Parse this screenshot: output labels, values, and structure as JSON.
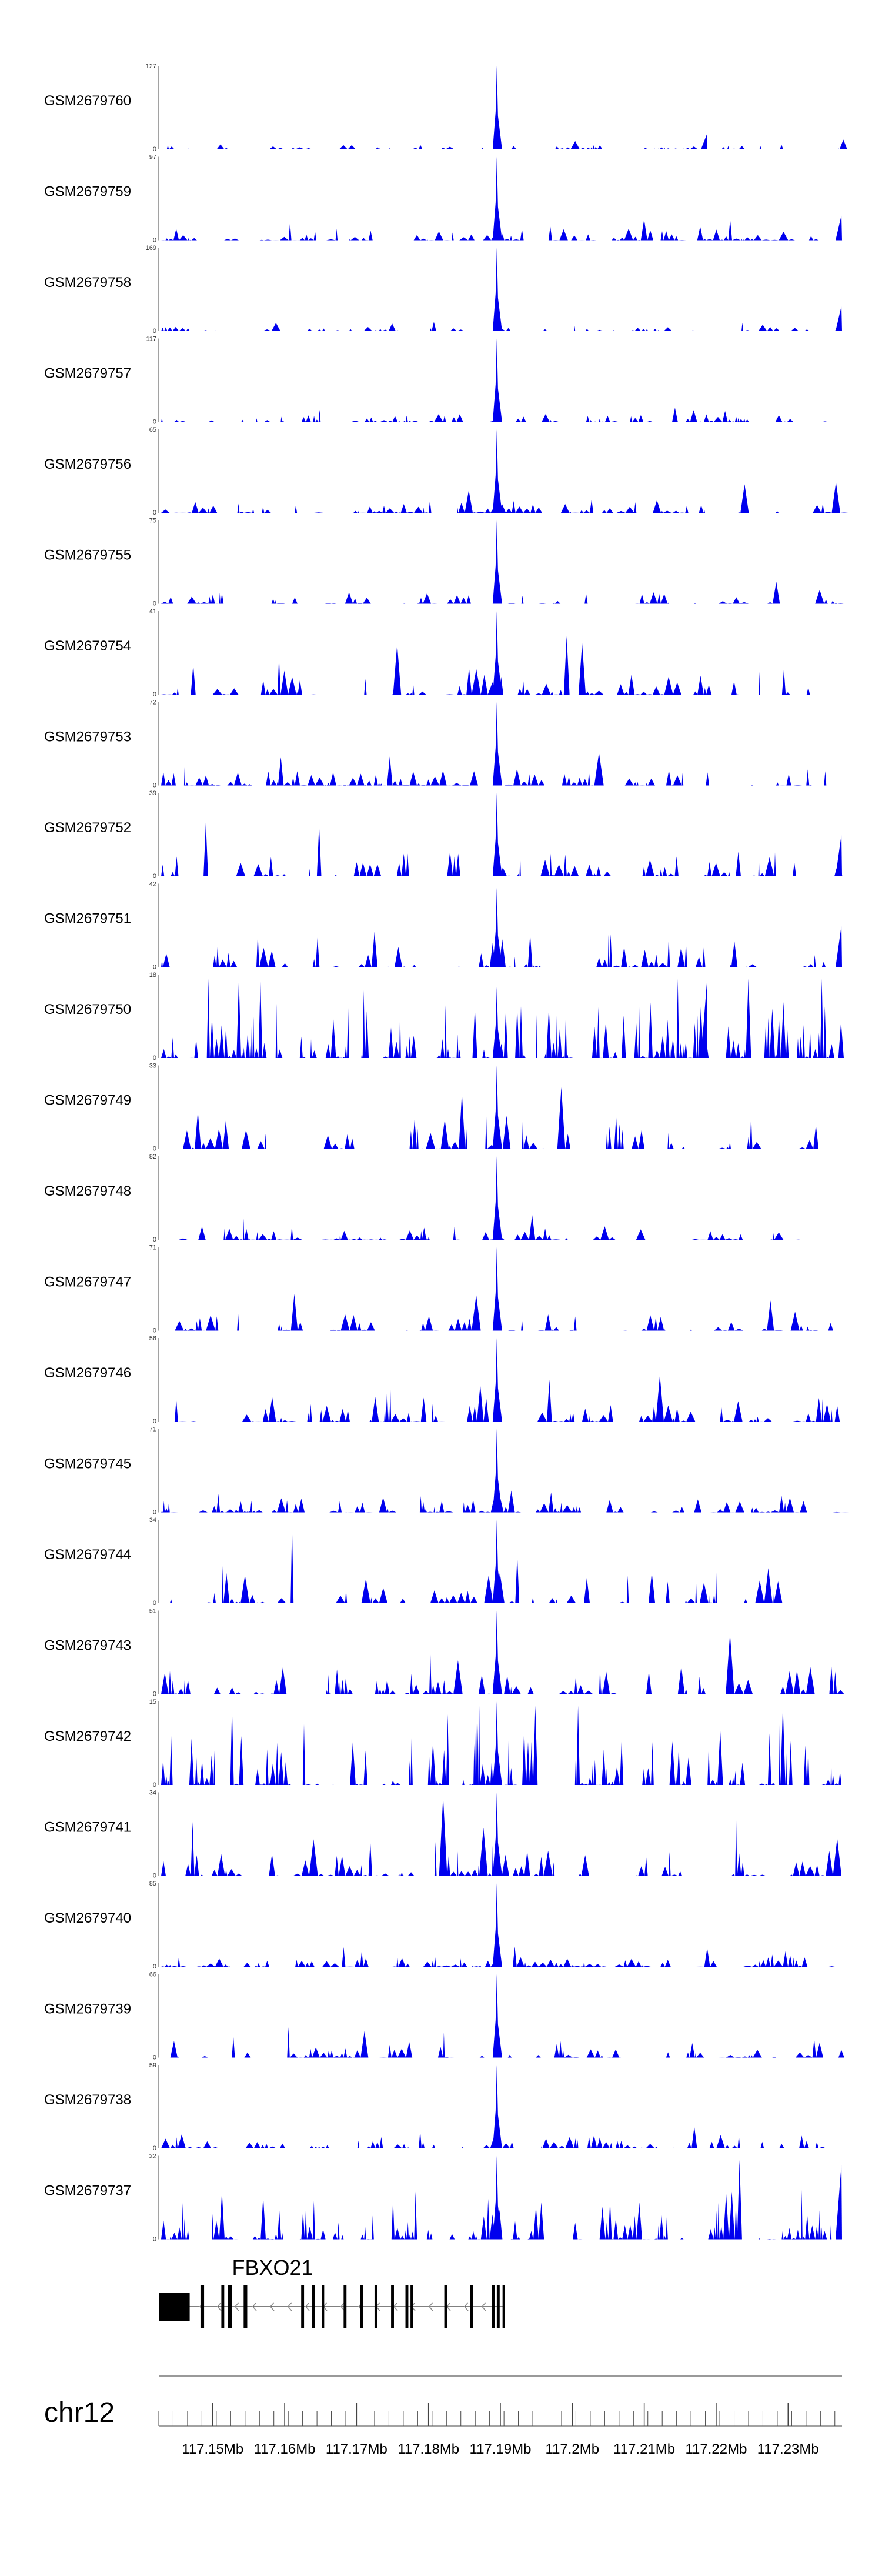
{
  "chart_data": {
    "type": "area",
    "title": "",
    "chromosome": "chr12",
    "genes": [
      {
        "name": "FBXO21",
        "strand": "-",
        "start": 117.1425,
        "end": 117.1905,
        "exons": [
          [
            117.1425,
            117.1468
          ],
          [
            117.1483,
            117.1487
          ],
          [
            117.1485,
            117.1488
          ],
          [
            117.1512,
            117.1516
          ],
          [
            117.1521,
            117.1527
          ],
          [
            117.1543,
            117.1548
          ],
          [
            117.1623,
            117.1627
          ],
          [
            117.1638,
            117.1642
          ],
          [
            117.1652,
            117.1655
          ],
          [
            117.1682,
            117.1686
          ],
          [
            117.1705,
            117.1709
          ],
          [
            117.1725,
            117.1729
          ],
          [
            117.1748,
            117.1752
          ],
          [
            117.1768,
            117.1772
          ],
          [
            117.1775,
            117.1779
          ],
          [
            117.1822,
            117.1826
          ],
          [
            117.1858,
            117.1862
          ],
          [
            117.1888,
            117.1892
          ],
          [
            117.1895,
            117.1899
          ],
          [
            117.1903,
            117.1906
          ]
        ]
      }
    ],
    "x_axis": {
      "range": [
        117.1425,
        117.2375
      ],
      "tick_labels": [
        "117.15Mb",
        "117.16Mb",
        "117.17Mb",
        "117.18Mb",
        "117.19Mb",
        "117.2Mb",
        "117.21Mb",
        "117.22Mb",
        "117.23Mb"
      ],
      "tick_values": [
        117.15,
        117.16,
        117.17,
        117.18,
        117.19,
        117.2,
        117.21,
        117.22,
        117.23
      ],
      "minor_tick_interval": 0.002
    },
    "peak_center": 117.1895,
    "tracks": [
      {
        "name": "GSM2679760",
        "ymax": 127,
        "ymin": 0,
        "noise": 0.06,
        "peak": 1.0,
        "seed": 1,
        "extra_peaks": [
          [
            117.2187,
            0.18
          ]
        ]
      },
      {
        "name": "GSM2679759",
        "ymax": 97,
        "ymin": 0,
        "noise": 0.14,
        "peak": 1.0,
        "seed": 2,
        "extra_peaks": [
          [
            117.2375,
            0.3
          ]
        ]
      },
      {
        "name": "GSM2679758",
        "ymax": 169,
        "ymin": 0,
        "noise": 0.05,
        "peak": 1.0,
        "seed": 3,
        "extra_peaks": [
          [
            117.2375,
            0.3
          ]
        ]
      },
      {
        "name": "GSM2679757",
        "ymax": 117,
        "ymin": 0,
        "noise": 0.1,
        "peak": 1.0,
        "seed": 4,
        "extra_peaks": []
      },
      {
        "name": "GSM2679756",
        "ymax": 65,
        "ymin": 0,
        "noise": 0.17,
        "peak": 1.0,
        "seed": 5,
        "extra_peaks": []
      },
      {
        "name": "GSM2679755",
        "ymax": 75,
        "ymin": 0,
        "noise": 0.14,
        "peak": 1.0,
        "seed": 6,
        "extra_peaks": []
      },
      {
        "name": "GSM2679754",
        "ymax": 41,
        "ymin": 0,
        "noise": 0.4,
        "peak": 1.0,
        "seed": 7,
        "extra_peaks": []
      },
      {
        "name": "GSM2679753",
        "ymax": 72,
        "ymin": 0,
        "noise": 0.2,
        "peak": 1.0,
        "seed": 8,
        "extra_peaks": []
      },
      {
        "name": "GSM2679752",
        "ymax": 39,
        "ymin": 0,
        "noise": 0.3,
        "peak": 1.0,
        "seed": 9,
        "extra_peaks": [
          [
            117.2375,
            0.5
          ]
        ]
      },
      {
        "name": "GSM2679751",
        "ymax": 42,
        "ymin": 0,
        "noise": 0.4,
        "peak": 0.95,
        "seed": 10,
        "extra_peaks": [
          [
            117.2375,
            0.5
          ]
        ]
      },
      {
        "name": "GSM2679750",
        "ymax": 18,
        "ymin": 0,
        "noise": 0.7,
        "peak": 0.85,
        "seed": 11,
        "extra_peaks": [
          [
            117.2187,
            0.9
          ]
        ]
      },
      {
        "name": "GSM2679749",
        "ymax": 33,
        "ymin": 0,
        "noise": 0.45,
        "peak": 1.0,
        "seed": 12,
        "extra_peaks": []
      },
      {
        "name": "GSM2679748",
        "ymax": 82,
        "ymin": 0,
        "noise": 0.16,
        "peak": 1.0,
        "seed": 13,
        "extra_peaks": []
      },
      {
        "name": "GSM2679747",
        "ymax": 71,
        "ymin": 0,
        "noise": 0.2,
        "peak": 1.0,
        "seed": 14,
        "extra_peaks": []
      },
      {
        "name": "GSM2679746",
        "ymax": 56,
        "ymin": 0,
        "noise": 0.3,
        "peak": 1.0,
        "seed": 15,
        "extra_peaks": []
      },
      {
        "name": "GSM2679745",
        "ymax": 71,
        "ymin": 0,
        "noise": 0.2,
        "peak": 1.0,
        "seed": 16,
        "extra_peaks": []
      },
      {
        "name": "GSM2679744",
        "ymax": 34,
        "ymin": 0,
        "noise": 0.45,
        "peak": 1.0,
        "seed": 17,
        "extra_peaks": []
      },
      {
        "name": "GSM2679743",
        "ymax": 51,
        "ymin": 0,
        "noise": 0.35,
        "peak": 1.0,
        "seed": 18,
        "extra_peaks": []
      },
      {
        "name": "GSM2679742",
        "ymax": 15,
        "ymin": 0,
        "noise": 0.75,
        "peak": 1.0,
        "seed": 19,
        "extra_peaks": []
      },
      {
        "name": "GSM2679741",
        "ymax": 34,
        "ymin": 0,
        "noise": 0.45,
        "peak": 1.0,
        "seed": 20,
        "extra_peaks": []
      },
      {
        "name": "GSM2679740",
        "ymax": 85,
        "ymin": 0,
        "noise": 0.12,
        "peak": 1.0,
        "seed": 21,
        "extra_peaks": []
      },
      {
        "name": "GSM2679739",
        "ymax": 66,
        "ymin": 0,
        "noise": 0.2,
        "peak": 1.0,
        "seed": 22,
        "extra_peaks": []
      },
      {
        "name": "GSM2679738",
        "ymax": 59,
        "ymin": 0,
        "noise": 0.17,
        "peak": 1.0,
        "seed": 23,
        "extra_peaks": []
      },
      {
        "name": "GSM2679737",
        "ymax": 22,
        "ymin": 0,
        "noise": 0.6,
        "peak": 1.0,
        "seed": 24,
        "extra_peaks": [
          [
            117.2375,
            0.9
          ]
        ]
      }
    ]
  },
  "colors": {
    "signal": "#0000ee",
    "axis": "#444444",
    "gene": "#000000",
    "strand_arrows": "#888888"
  }
}
